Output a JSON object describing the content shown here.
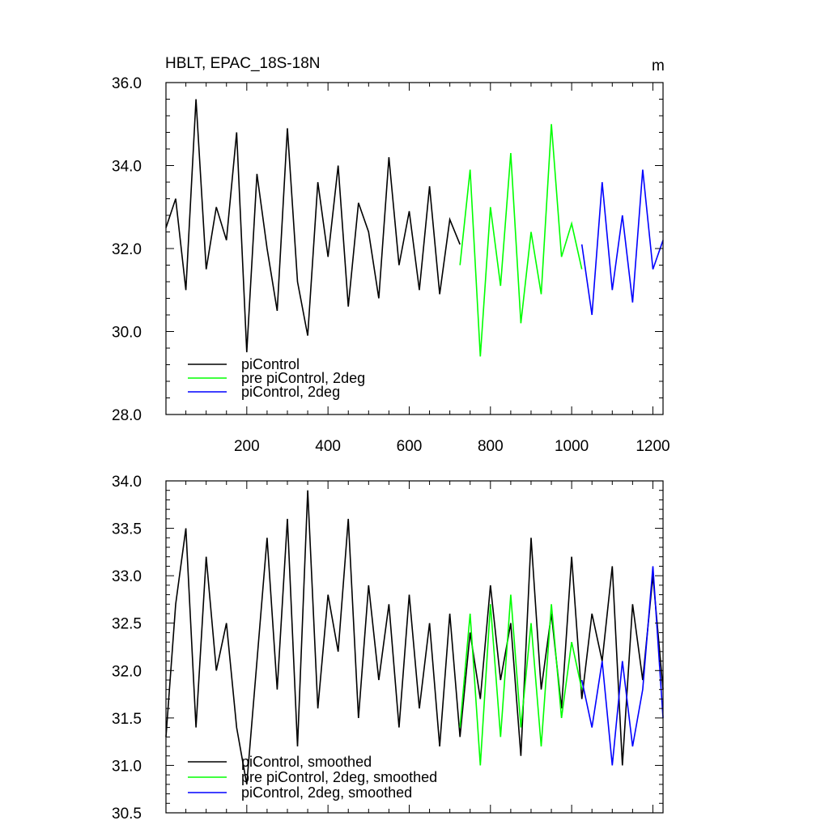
{
  "chart_data": [
    {
      "type": "line",
      "title": "HBLT, EPAC_18S-18N",
      "units": "m",
      "xlim": [
        1,
        1225
      ],
      "ylim": [
        28.0,
        36.0
      ],
      "yticks": [
        "28.0",
        "30.0",
        "32.0",
        "34.0",
        "36.0"
      ],
      "xticks": [
        "200",
        "400",
        "600",
        "800",
        "1000",
        "1200"
      ],
      "series": [
        {
          "name": "piControl",
          "color": "#000000",
          "x": [
            1,
            25,
            50,
            75,
            100,
            125,
            150,
            175,
            200,
            225,
            250,
            275,
            300,
            325,
            350,
            375,
            400,
            425,
            450,
            475,
            500,
            525,
            550,
            575,
            600,
            625,
            650,
            675,
            700,
            725
          ],
          "values": [
            32.5,
            33.2,
            31.0,
            35.6,
            31.5,
            33.0,
            32.2,
            34.8,
            29.5,
            33.8,
            32.0,
            30.5,
            34.9,
            31.2,
            29.9,
            33.6,
            31.8,
            34.0,
            30.6,
            33.1,
            32.4,
            30.8,
            34.2,
            31.6,
            32.9,
            31.0,
            33.5,
            30.9,
            32.7,
            32.1
          ]
        },
        {
          "name": "pre piControl, 2deg",
          "color": "#00ff00",
          "x": [
            725,
            750,
            775,
            800,
            825,
            850,
            875,
            900,
            925,
            950,
            975,
            1000,
            1025
          ],
          "values": [
            31.6,
            33.9,
            29.4,
            33.0,
            31.1,
            34.3,
            30.2,
            32.4,
            30.9,
            35.0,
            31.8,
            32.6,
            31.5
          ]
        },
        {
          "name": "piControl, 2deg",
          "color": "#0000ff",
          "x": [
            1025,
            1050,
            1075,
            1100,
            1125,
            1150,
            1175,
            1200,
            1225
          ],
          "values": [
            32.1,
            30.4,
            33.6,
            31.0,
            32.8,
            30.7,
            33.9,
            31.5,
            32.2
          ]
        }
      ]
    },
    {
      "type": "line",
      "xlim": [
        1,
        1225
      ],
      "ylim": [
        30.5,
        34.0
      ],
      "yticks": [
        "30.5",
        "31.0",
        "31.5",
        "32.0",
        "32.5",
        "33.0",
        "33.5",
        "34.0"
      ],
      "series": [
        {
          "name": "piControl, smoothed",
          "color": "#000000",
          "x": [
            1,
            25,
            50,
            75,
            100,
            125,
            150,
            175,
            200,
            225,
            250,
            275,
            300,
            325,
            350,
            375,
            400,
            425,
            450,
            475,
            500,
            525,
            550,
            575,
            600,
            625,
            650,
            675,
            700,
            725,
            750,
            775,
            800,
            825,
            850,
            875,
            900,
            925,
            950,
            975,
            1000,
            1025,
            1050,
            1075,
            1100,
            1125,
            1150,
            1175,
            1200,
            1225
          ],
          "values": [
            31.3,
            32.7,
            33.5,
            31.4,
            33.2,
            32.0,
            32.5,
            31.4,
            30.8,
            32.1,
            33.4,
            31.8,
            33.6,
            31.2,
            33.9,
            31.6,
            32.8,
            32.2,
            33.6,
            31.5,
            32.9,
            31.9,
            32.7,
            31.4,
            32.8,
            31.6,
            32.5,
            31.2,
            32.6,
            31.3,
            32.4,
            31.7,
            32.9,
            31.9,
            32.5,
            31.1,
            33.4,
            31.8,
            32.6,
            31.6,
            33.2,
            31.7,
            32.6,
            32.1,
            33.1,
            31.0,
            32.7,
            31.9,
            33.0,
            31.8
          ]
        },
        {
          "name": "pre piControl, 2deg, smoothed",
          "color": "#00ff00",
          "x": [
            725,
            750,
            775,
            800,
            825,
            850,
            875,
            900,
            925,
            950,
            975,
            1000,
            1025
          ],
          "values": [
            31.4,
            32.6,
            31.0,
            32.7,
            31.3,
            32.8,
            31.4,
            32.5,
            31.2,
            32.7,
            31.5,
            32.3,
            31.8
          ]
        },
        {
          "name": "piControl, 2deg, smoothed",
          "color": "#0000ff",
          "x": [
            1025,
            1050,
            1075,
            1100,
            1125,
            1150,
            1175,
            1200,
            1225
          ],
          "values": [
            31.9,
            31.4,
            32.1,
            31.0,
            32.1,
            31.2,
            31.8,
            33.1,
            31.5
          ]
        }
      ]
    }
  ]
}
